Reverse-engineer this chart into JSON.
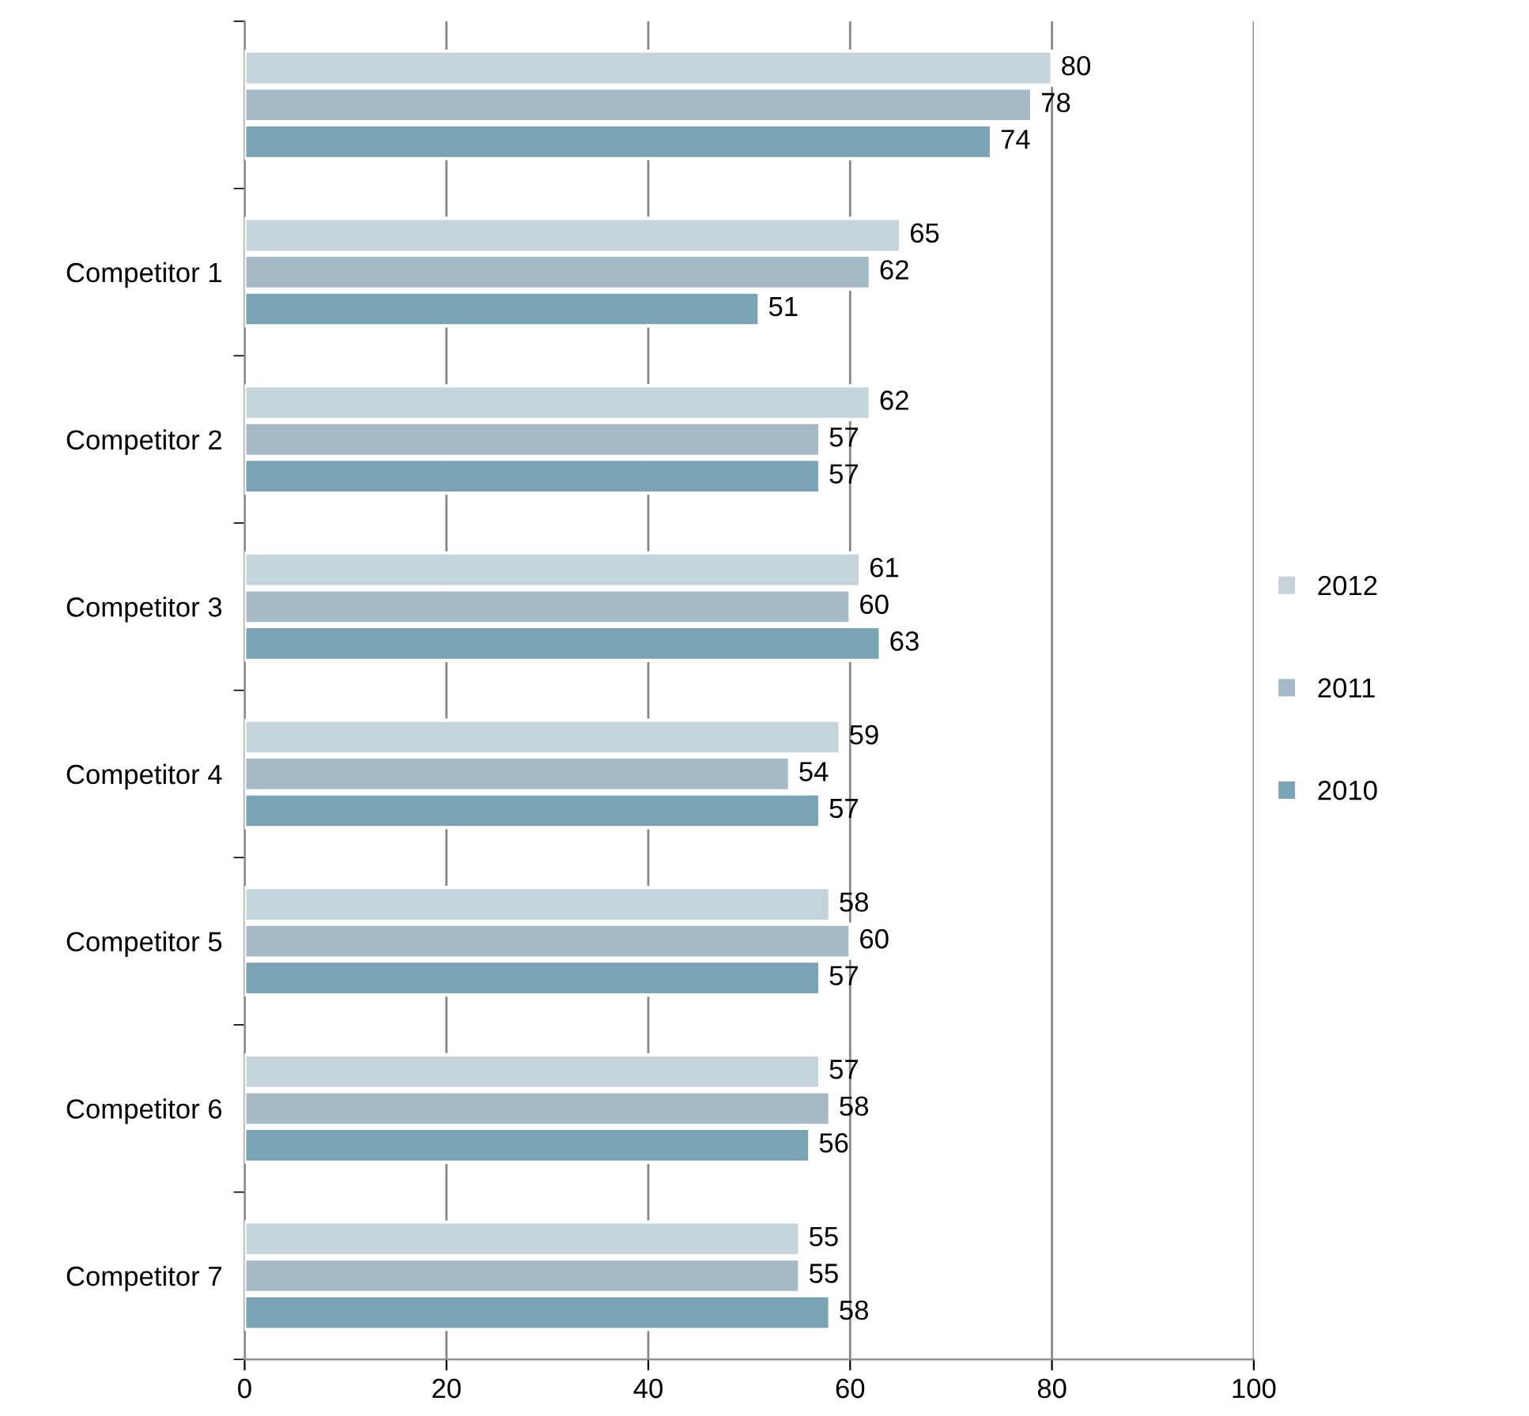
{
  "chart_data": {
    "type": "bar",
    "orientation": "horizontal",
    "categories": [
      null,
      "Competitor 1",
      "Competitor 2",
      "Competitor 3",
      "Competitor 4",
      "Competitor 5",
      "Competitor 6",
      "Competitor 7"
    ],
    "series": [
      {
        "name": "2012",
        "color": "#c5d3da",
        "values": [
          80,
          65,
          62,
          61,
          59,
          58,
          57,
          55
        ]
      },
      {
        "name": "2011",
        "color": "#a5b9c6",
        "values": [
          78,
          62,
          57,
          60,
          54,
          60,
          58,
          55
        ]
      },
      {
        "name": "2010",
        "color": "#7aa3b3",
        "values": [
          74,
          51,
          57,
          63,
          57,
          57,
          56,
          58
        ]
      }
    ],
    "xlim": [
      0,
      100
    ],
    "xticks": [
      0,
      20,
      40,
      60,
      80,
      100
    ],
    "grid": "x",
    "legend": "right",
    "data_labels": true
  }
}
